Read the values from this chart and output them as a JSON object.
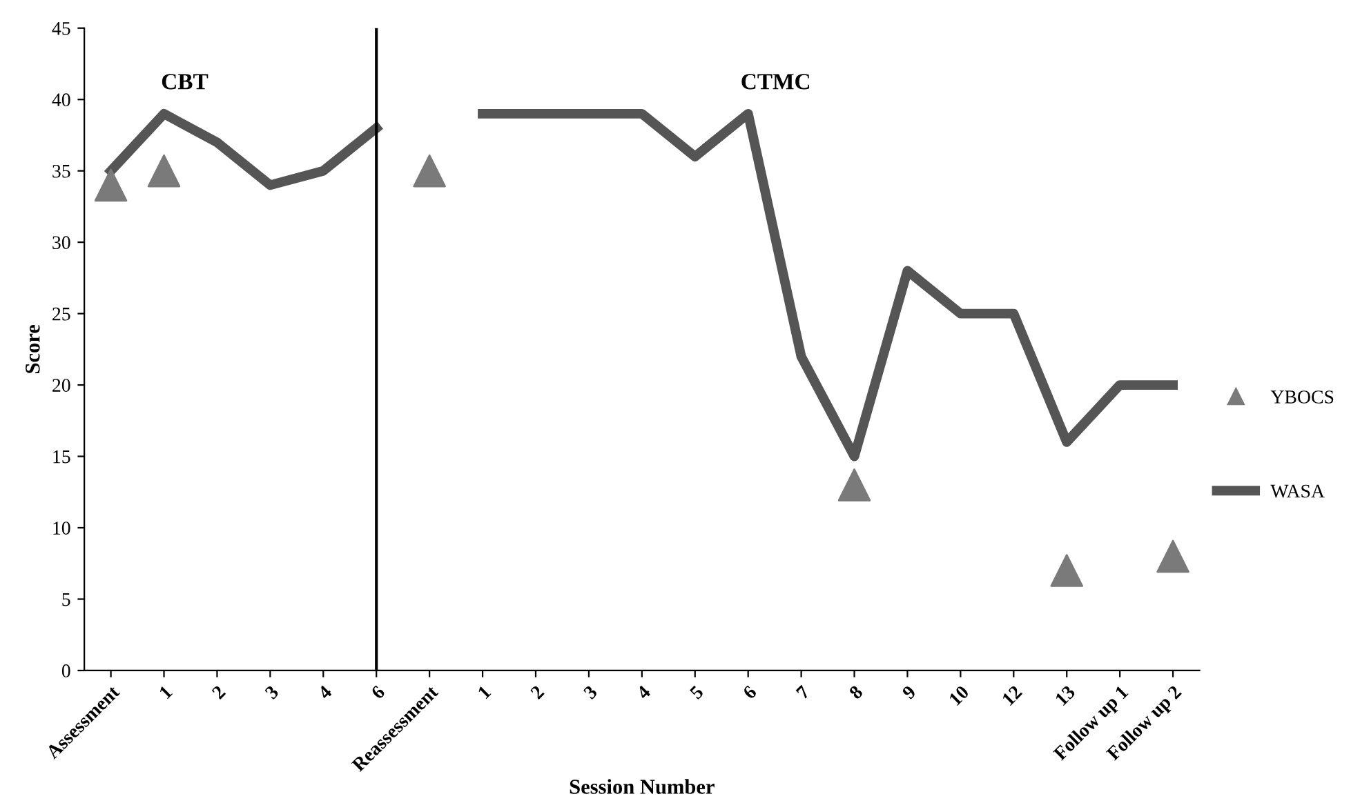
{
  "chart_data": {
    "type": "line",
    "xlabel": "Session Number",
    "ylabel": "Score",
    "categories": [
      "Assessment",
      "1",
      "2",
      "3",
      "4",
      "6",
      "Reassessment",
      "1",
      "2",
      "3",
      "4",
      "5",
      "6",
      "7",
      "8",
      "9",
      "10",
      "12",
      "13",
      "Follow up 1",
      "Follow up 2"
    ],
    "series": [
      {
        "name": "YBOCS",
        "type": "scatter",
        "marker": "triangle",
        "color": "#7a7a7a",
        "values": [
          34,
          35,
          null,
          null,
          null,
          null,
          35,
          null,
          null,
          null,
          null,
          null,
          null,
          null,
          13,
          null,
          null,
          null,
          7,
          null,
          8
        ]
      },
      {
        "name": "WASA",
        "marker": "none",
        "color": "#555555",
        "values": [
          35,
          39,
          37,
          34,
          35,
          38,
          null,
          39,
          39,
          39,
          39,
          36,
          39,
          22,
          15,
          28,
          25,
          25,
          16,
          20,
          20
        ]
      }
    ],
    "annotations": [
      "CBT",
      "CTMC"
    ],
    "ref_lines": [
      {
        "axis": "x",
        "value": "6",
        "label": null,
        "color": "#000000"
      }
    ],
    "ylim": [
      0,
      45
    ],
    "yticks": [
      0,
      5,
      10,
      15,
      20,
      25,
      30,
      35,
      40,
      45
    ],
    "grid": false,
    "legend": "right"
  }
}
